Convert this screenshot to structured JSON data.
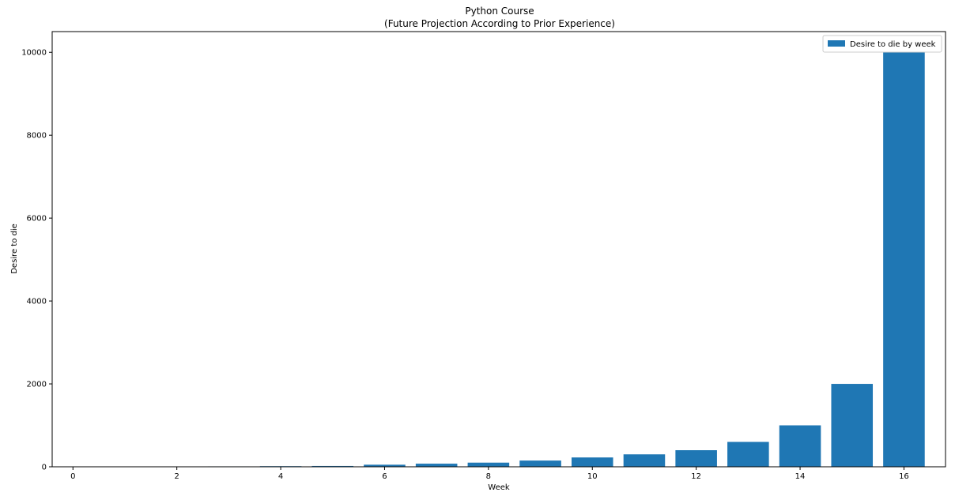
{
  "chart_data": {
    "type": "bar",
    "title": "Python Course",
    "subtitle": "(Future Projection According to Prior Experience)",
    "xlabel": "Week",
    "ylabel": "Desire to die",
    "x": [
      0,
      1,
      2,
      3,
      4,
      5,
      6,
      7,
      8,
      9,
      10,
      11,
      12,
      13,
      14,
      15,
      16
    ],
    "series": [
      {
        "name": "Desire to die by week",
        "color": "#1f77b4",
        "values": [
          0,
          0,
          0,
          10,
          15,
          20,
          50,
          75,
          100,
          150,
          225,
          300,
          400,
          600,
          1000,
          2000,
          10000
        ]
      }
    ],
    "xlim": [
      -0.4,
      16.8
    ],
    "ylim": [
      0,
      10500
    ],
    "xticks": [
      0,
      2,
      4,
      6,
      8,
      10,
      12,
      14,
      16
    ],
    "yticks": [
      0,
      2000,
      4000,
      6000,
      8000,
      10000
    ],
    "legend_position": "top-right",
    "grid": false
  }
}
